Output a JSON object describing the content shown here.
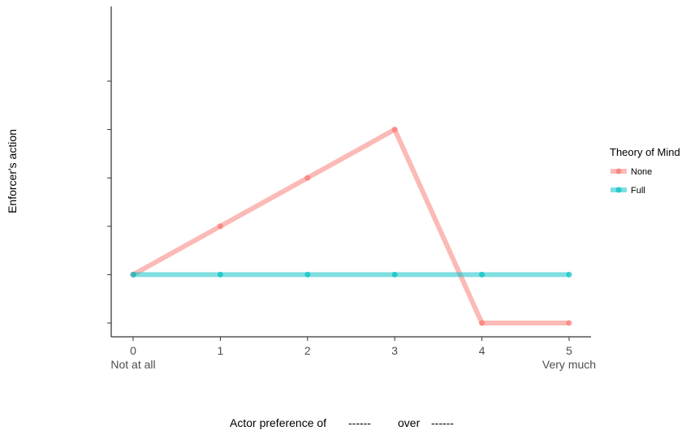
{
  "chart_data": {
    "type": "line",
    "xlabel": "Actor preference of",
    "xlabel_blank_a": "------",
    "xlabel_mid": "over",
    "xlabel_blank_b": "------",
    "ylabel": "Enforcer's action",
    "x": [
      0,
      1,
      2,
      3,
      4,
      5
    ],
    "x_tick_labels": [
      "0",
      "1",
      "2",
      "3",
      "4",
      "5"
    ],
    "x_end_labels": {
      "left": "Not at all",
      "right": "Very much"
    },
    "y_tick_labels_shown": false,
    "y_ticks": [
      0,
      1,
      2,
      3,
      4,
      5
    ],
    "ylim": [
      0,
      5
    ],
    "series": [
      {
        "name": "None",
        "color": "#F8766D",
        "values": [
          1,
          2,
          3,
          4,
          0,
          0
        ]
      },
      {
        "name": "Full",
        "color": "#00BFC4",
        "values": [
          1,
          1,
          1,
          1,
          1,
          1
        ]
      }
    ],
    "legend": {
      "title": "Theory of Mind",
      "position": "right"
    },
    "grid": false
  }
}
